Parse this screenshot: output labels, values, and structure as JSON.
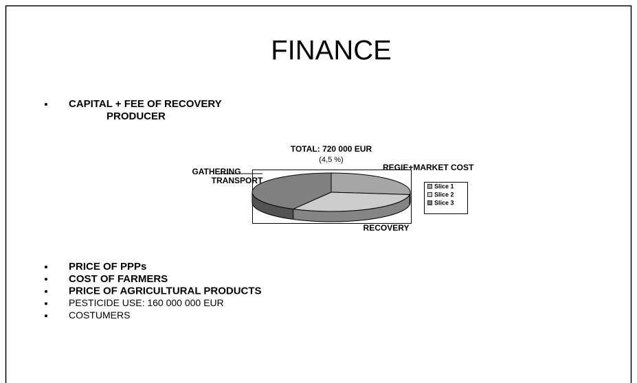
{
  "title": "FINANCE",
  "top_bullets": [
    {
      "text": "CAPITAL + FEE OF RECOVERY",
      "sub": "PRODUCER"
    }
  ],
  "chart_data": {
    "type": "pie",
    "title": "TOTAL: 720 000 EUR",
    "subtitle": "(4,5 %)",
    "categories": [
      "Slice 1",
      "Slice 2",
      "Slice 3"
    ],
    "values": [
      27,
      31,
      42
    ],
    "colors": [
      "#a6a6a6",
      "#cccccc",
      "#808080"
    ],
    "slice_labels": [
      [
        "REGIE+MARKET COST"
      ],
      [
        "RECOVERY"
      ],
      [
        "GATHERING",
        "TRANSPORT"
      ]
    ],
    "legend": "right"
  },
  "bottom_bullets": [
    {
      "text": "PRICE OF PPPs",
      "bold": true
    },
    {
      "text": "COST OF FARMERS",
      "bold": true
    },
    {
      "text": "PRICE OF AGRICULTURAL PRODUCTS",
      "bold": true
    },
    {
      "text": "PESTICIDE USE: 160 000 000 EUR",
      "bold": false
    },
    {
      "text": "COSTUMERS",
      "bold": false
    }
  ]
}
